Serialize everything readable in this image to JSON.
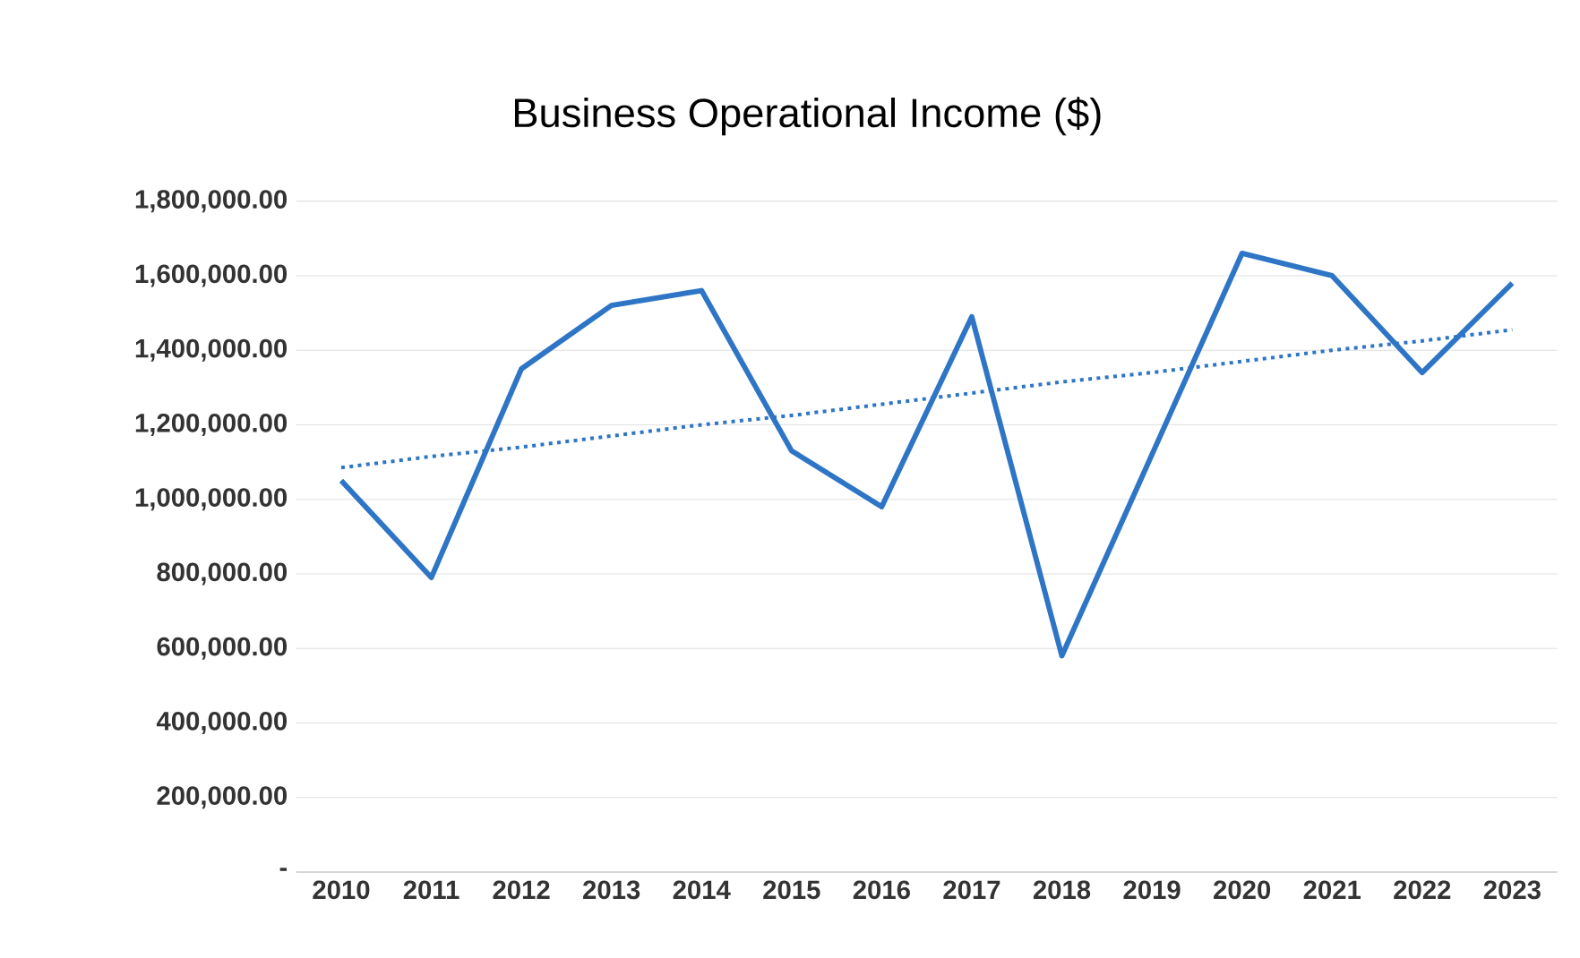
{
  "chart_data": {
    "type": "line",
    "title": "Business Operational Income ($)",
    "categories": [
      "2010",
      "2011",
      "2012",
      "2013",
      "2014",
      "2015",
      "2016",
      "2017",
      "2018",
      "2019",
      "2020",
      "2021",
      "2022",
      "2023"
    ],
    "series": [
      {
        "color": "#2e75c6",
        "line_style": "solid",
        "values": [
          1050000,
          790000,
          1350000,
          1520000,
          1560000,
          1130000,
          980000,
          1490000,
          580000,
          1120000,
          1660000,
          1600000,
          1340000,
          1580000
        ]
      },
      {
        "color": "#2e75c6",
        "line_style": "dotted",
        "values": [
          1085000,
          1115000,
          1140000,
          1170000,
          1200000,
          1225000,
          1255000,
          1285000,
          1315000,
          1340000,
          1370000,
          1400000,
          1425000,
          1455000
        ]
      }
    ],
    "ylim": [
      0,
      1800000
    ],
    "yticks": [
      {
        "value": 0,
        "label": "-"
      },
      {
        "value": 200000,
        "label": "200,000.00"
      },
      {
        "value": 400000,
        "label": "400,000.00"
      },
      {
        "value": 600000,
        "label": "600,000.00"
      },
      {
        "value": 800000,
        "label": "800,000.00"
      },
      {
        "value": 1000000,
        "label": "1,000,000.00"
      },
      {
        "value": 1200000,
        "label": "1,200,000.00"
      },
      {
        "value": 1400000,
        "label": "1,400,000.00"
      },
      {
        "value": 1600000,
        "label": "1,600,000.00"
      },
      {
        "value": 1800000,
        "label": "1,800,000.00"
      }
    ],
    "grid": "y",
    "marker": "none"
  }
}
